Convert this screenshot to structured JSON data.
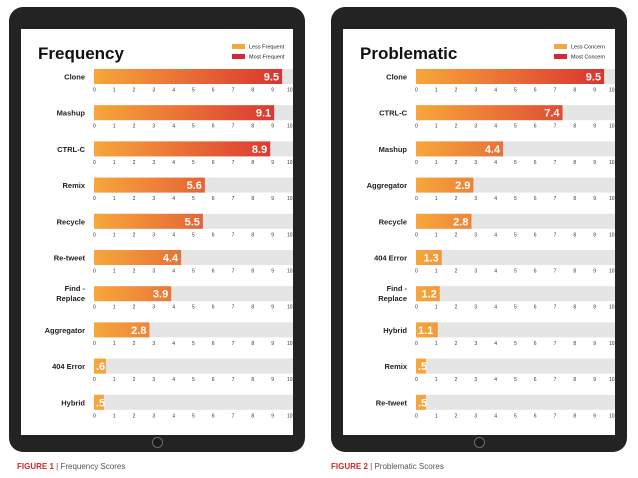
{
  "colors": {
    "bar_start": "#f6a73b",
    "bar_end": "#d92a30",
    "track": "#e5e5e5",
    "legend_low": "#f5a83a",
    "legend_high": "#d5263a",
    "bezel": "#232323",
    "caption_accent": "#cc2a2a"
  },
  "chart_data": [
    {
      "type": "bar",
      "orientation": "horizontal",
      "title": "Frequency",
      "legend": [
        "Less Frequent",
        "Most Frequent"
      ],
      "legend_position": "top-right",
      "categories": [
        "Clone",
        "Mashup",
        "CTRL-C",
        "Remix",
        "Recycle",
        "Re-tweet",
        "Find - Replace",
        "Aggregator",
        "404 Error",
        "Hybrid"
      ],
      "category_lines": [
        [
          "Clone"
        ],
        [
          "Mashup"
        ],
        [
          "CTRL-C"
        ],
        [
          "Remix"
        ],
        [
          "Recycle"
        ],
        [
          "Re-tweet"
        ],
        [
          "Find -",
          "Replace"
        ],
        [
          "Aggregator"
        ],
        [
          "404 Error"
        ],
        [
          "Hybrid"
        ]
      ],
      "values": [
        9.5,
        9.1,
        8.9,
        5.6,
        5.5,
        4.4,
        3.9,
        2.8,
        0.6,
        0.5
      ],
      "value_labels": [
        "9.5",
        "9.1",
        "8.9",
        "5.6",
        "5.5",
        "4.4",
        "3.9",
        "2.8",
        ".6",
        ".5"
      ],
      "xlim": [
        0,
        10
      ],
      "ticks": [
        "0",
        "1",
        "2",
        "3",
        "4",
        "5",
        "6",
        "7",
        "8",
        "9",
        "10"
      ],
      "grid": false
    },
    {
      "type": "bar",
      "orientation": "horizontal",
      "title": "Problematic",
      "legend": [
        "Less Concern",
        "Most Concern"
      ],
      "legend_position": "top-right",
      "categories": [
        "Clone",
        "CTRL-C",
        "Mashup",
        "Aggregator",
        "Recycle",
        "404 Error",
        "Find - Replace",
        "Hybrid",
        "Remix",
        "Re-tweet"
      ],
      "category_lines": [
        [
          "Clone"
        ],
        [
          "CTRL-C"
        ],
        [
          "Mashup"
        ],
        [
          "Aggregator"
        ],
        [
          "Recycle"
        ],
        [
          "404 Error"
        ],
        [
          "Find -",
          "Replace"
        ],
        [
          "Hybrid"
        ],
        [
          "Remix"
        ],
        [
          "Re-tweet"
        ]
      ],
      "values": [
        9.5,
        7.4,
        4.4,
        2.9,
        2.8,
        1.3,
        1.2,
        1.1,
        0.5,
        0.5
      ],
      "value_labels": [
        "9.5",
        "7.4",
        "4.4",
        "2.9",
        "2.8",
        "1.3",
        "1.2",
        "1.1",
        ".5",
        ".5"
      ],
      "xlim": [
        0,
        10
      ],
      "ticks": [
        "0",
        "1",
        "2",
        "3",
        "4",
        "5",
        "6",
        "7",
        "8",
        "9",
        "10"
      ],
      "grid": false
    }
  ],
  "captions": [
    {
      "figure": "FIGURE 1",
      "separator": "|",
      "text": "Frequency Scores"
    },
    {
      "figure": "FIGURE 2",
      "separator": "|",
      "text": "Problematic Scores"
    }
  ]
}
